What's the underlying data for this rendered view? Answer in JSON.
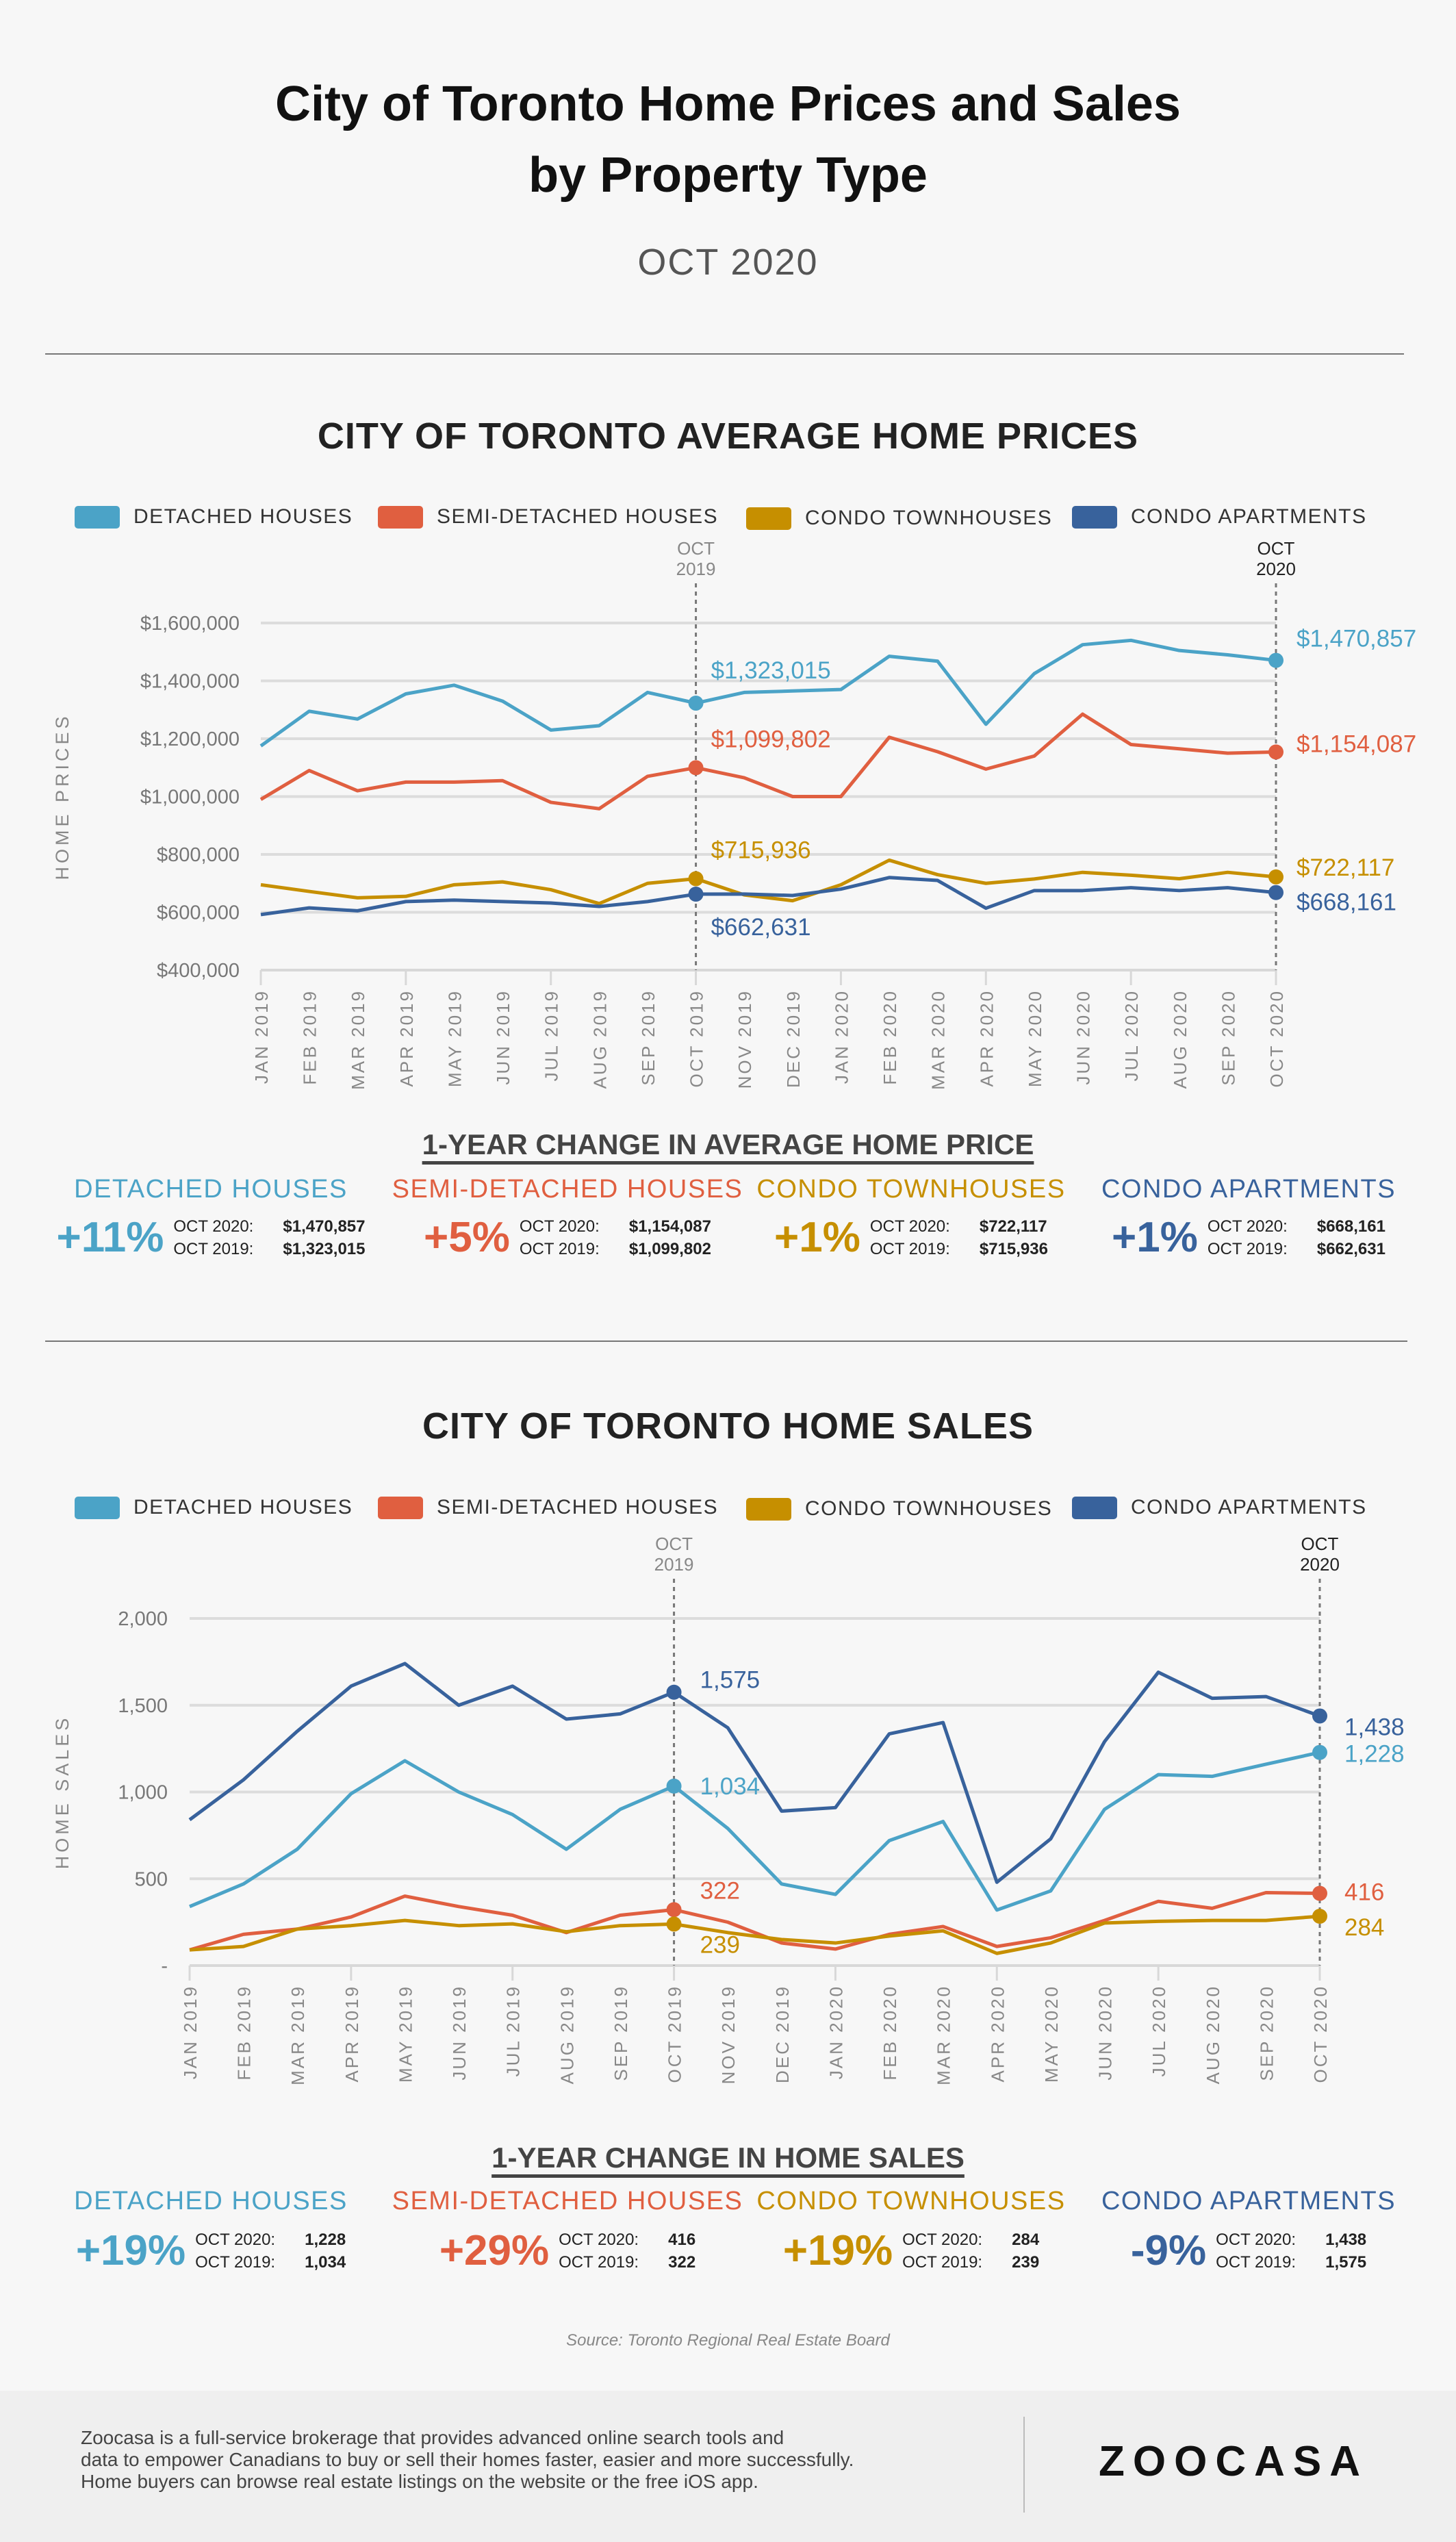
{
  "header": {
    "title_line1": "City of Toronto Home Prices and Sales",
    "title_line2": "by Property Type",
    "subtitle": "OCT 2020"
  },
  "colors": {
    "detached": "#4ba3c7",
    "semi": "#e05f40",
    "townhouse": "#c68f00",
    "apartment": "#38629c"
  },
  "legend": [
    "DETACHED HOUSES",
    "SEMI-DETACHED HOUSES",
    "CONDO TOWNHOUSES",
    "CONDO APARTMENTS"
  ],
  "chart_data": [
    {
      "type": "line",
      "title": "CITY OF TORONTO AVERAGE HOME PRICES",
      "ylabel": "HOME PRICES",
      "xlabel": "",
      "ylim": [
        400000,
        1600000
      ],
      "yticks": [
        400000,
        600000,
        800000,
        1000000,
        1200000,
        1400000,
        1600000
      ],
      "ytick_labels": [
        "$400,000",
        "$600,000",
        "$800,000",
        "$1,000,000",
        "$1,200,000",
        "$1,400,000",
        "$1,600,000"
      ],
      "grid": true,
      "legend_position": "top",
      "categories": [
        "JAN 2019",
        "FEB 2019",
        "MAR 2019",
        "APR 2019",
        "MAY 2019",
        "JUN 2019",
        "JUL 2019",
        "AUG 2019",
        "SEP 2019",
        "OCT 2019",
        "NOV 2019",
        "DEC 2019",
        "JAN 2020",
        "FEB 2020",
        "MAR 2020",
        "APR 2020",
        "MAY 2020",
        "JUN 2020",
        "JUL 2020",
        "AUG 2020",
        "SEP 2020",
        "OCT 2020"
      ],
      "markers": [
        {
          "index": 9,
          "label_line1": "OCT",
          "label_line2": "2019"
        },
        {
          "index": 21,
          "label_line1": "OCT",
          "label_line2": "2020"
        }
      ],
      "series": [
        {
          "name": "DETACHED HOUSES",
          "color_key": "detached",
          "values": [
            1175000,
            1295000,
            1268000,
            1355000,
            1385000,
            1330000,
            1230000,
            1245000,
            1360000,
            1323015,
            1360000,
            1365000,
            1370000,
            1485000,
            1468000,
            1250000,
            1425000,
            1525000,
            1540000,
            1505000,
            1490000,
            1470857
          ],
          "annotations": [
            "$1,323,015",
            "$1,470,857"
          ]
        },
        {
          "name": "SEMI-DETACHED HOUSES",
          "color_key": "semi",
          "values": [
            990000,
            1090000,
            1020000,
            1050000,
            1050000,
            1055000,
            980000,
            958000,
            1070000,
            1099802,
            1065000,
            1000000,
            1000000,
            1205000,
            1155000,
            1095000,
            1140000,
            1285000,
            1180000,
            1165000,
            1150000,
            1154087
          ],
          "annotations": [
            "$1,099,802",
            "$1,154,087"
          ]
        },
        {
          "name": "CONDO TOWNHOUSES",
          "color_key": "townhouse",
          "values": [
            695000,
            672000,
            650000,
            655000,
            695000,
            705000,
            678000,
            630000,
            700000,
            715936,
            660000,
            640000,
            695000,
            780000,
            730000,
            700000,
            715000,
            738000,
            728000,
            716000,
            738000,
            722117
          ],
          "annotations": [
            "$715,936",
            "$722,117"
          ]
        },
        {
          "name": "CONDO APARTMENTS",
          "color_key": "apartment",
          "values": [
            592000,
            615000,
            605000,
            637000,
            642000,
            637000,
            632000,
            620000,
            637000,
            662631,
            663000,
            658000,
            680000,
            720000,
            710000,
            614000,
            675000,
            675000,
            685000,
            675000,
            685000,
            668161
          ],
          "annotations": [
            "$662,631",
            "$668,161"
          ]
        }
      ]
    },
    {
      "type": "line",
      "title": "CITY OF TORONTO HOME SALES",
      "ylabel": "HOME SALES",
      "xlabel": "",
      "ylim": [
        0,
        2000
      ],
      "yticks": [
        0,
        500,
        1000,
        1500,
        2000
      ],
      "ytick_labels": [
        "-",
        "500",
        "1,000",
        "1,500",
        "2,000"
      ],
      "grid": true,
      "legend_position": "top",
      "categories": [
        "JAN 2019",
        "FEB 2019",
        "MAR 2019",
        "APR 2019",
        "MAY 2019",
        "JUN 2019",
        "JUL 2019",
        "AUG 2019",
        "SEP 2019",
        "OCT 2019",
        "NOV 2019",
        "DEC 2019",
        "JAN 2020",
        "FEB 2020",
        "MAR 2020",
        "APR 2020",
        "MAY 2020",
        "JUN 2020",
        "JUL 2020",
        "AUG 2020",
        "SEP 2020",
        "OCT 2020"
      ],
      "markers": [
        {
          "index": 9,
          "label_line1": "OCT",
          "label_line2": "2019"
        },
        {
          "index": 21,
          "label_line1": "OCT",
          "label_line2": "2020"
        }
      ],
      "series": [
        {
          "name": "DETACHED HOUSES",
          "color_key": "detached",
          "values": [
            340,
            470,
            670,
            990,
            1180,
            1000,
            870,
            670,
            900,
            1034,
            790,
            470,
            410,
            720,
            830,
            320,
            430,
            900,
            1100,
            1090,
            1160,
            1228
          ],
          "annotations": [
            "1,034",
            "1,228"
          ]
        },
        {
          "name": "SEMI-DETACHED HOUSES",
          "color_key": "semi",
          "values": [
            90,
            180,
            210,
            280,
            400,
            340,
            290,
            190,
            290,
            322,
            250,
            130,
            95,
            180,
            225,
            110,
            160,
            260,
            370,
            330,
            420,
            416
          ],
          "annotations": [
            "322",
            "416"
          ]
        },
        {
          "name": "CONDO TOWNHOUSES",
          "color_key": "townhouse",
          "values": [
            90,
            110,
            210,
            230,
            260,
            230,
            240,
            195,
            230,
            239,
            190,
            150,
            130,
            170,
            200,
            70,
            130,
            245,
            255,
            260,
            260,
            284
          ],
          "annotations": [
            "239",
            "284"
          ]
        },
        {
          "name": "CONDO APARTMENTS",
          "color_key": "apartment",
          "values": [
            840,
            1070,
            1350,
            1610,
            1740,
            1500,
            1610,
            1420,
            1450,
            1575,
            1370,
            890,
            910,
            1335,
            1400,
            480,
            730,
            1290,
            1690,
            1540,
            1550,
            1438
          ],
          "annotations": [
            "1,575",
            "1,438"
          ]
        }
      ]
    }
  ],
  "price_change": {
    "title": "1-YEAR CHANGE IN AVERAGE HOME PRICE",
    "row_label_2020": "OCT 2020:",
    "row_label_2019": "OCT 2019:",
    "items": [
      {
        "name": "DETACHED HOUSES",
        "pct": "+11%",
        "v2020": "$1,470,857",
        "v2019": "$1,323,015"
      },
      {
        "name": "SEMI-DETACHED HOUSES",
        "pct": "+5%",
        "v2020": "$1,154,087",
        "v2019": "$1,099,802"
      },
      {
        "name": "CONDO TOWNHOUSES",
        "pct": "+1%",
        "v2020": "$722,117",
        "v2019": "$715,936"
      },
      {
        "name": "CONDO APARTMENTS",
        "pct": "+1%",
        "v2020": "$668,161",
        "v2019": "$662,631"
      }
    ]
  },
  "sales_change": {
    "title": "1-YEAR CHANGE IN HOME SALES",
    "row_label_2020": "OCT 2020:",
    "row_label_2019": "OCT 2019:",
    "items": [
      {
        "name": "DETACHED HOUSES",
        "pct": "+19%",
        "v2020": "1,228",
        "v2019": "1,034"
      },
      {
        "name": "SEMI-DETACHED HOUSES",
        "pct": "+29%",
        "v2020": "416",
        "v2019": "322"
      },
      {
        "name": "CONDO TOWNHOUSES",
        "pct": "+19%",
        "v2020": "284",
        "v2019": "239"
      },
      {
        "name": "CONDO APARTMENTS",
        "pct": "-9%",
        "v2020": "1,438",
        "v2019": "1,575"
      }
    ]
  },
  "source": "Source: Toronto Regional Real Estate Board",
  "footer": {
    "line1": "Zoocasa is a full-service brokerage that provides advanced online search tools and",
    "line2": "data to empower Canadians to buy or sell their homes faster, easier and more successfully.",
    "line3": "Home buyers can browse real estate listings on the website or the free iOS app.",
    "logo": "ZOOCASA"
  }
}
